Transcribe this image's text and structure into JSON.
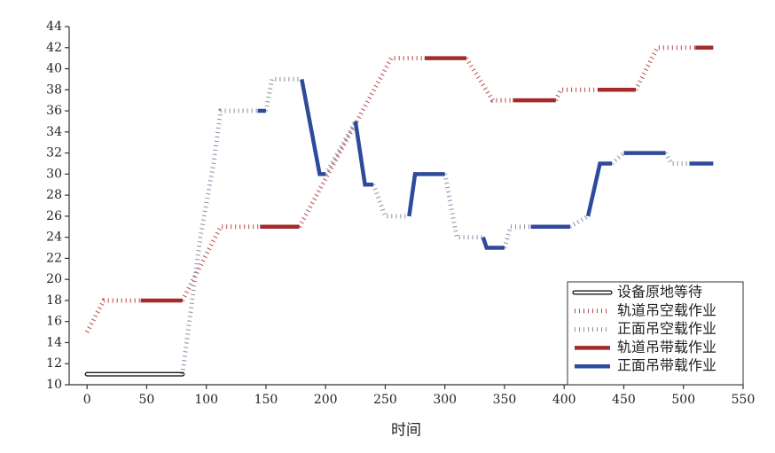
{
  "chart_data": {
    "type": "line",
    "x_label": "时间",
    "xlim": [
      -15,
      550
    ],
    "xticks": [
      0,
      50,
      100,
      150,
      200,
      250,
      300,
      350,
      400,
      450,
      500,
      550
    ],
    "ylim": [
      10,
      44
    ],
    "yticks": [
      10,
      12,
      14,
      16,
      18,
      20,
      22,
      24,
      26,
      28,
      30,
      32,
      34,
      36,
      38,
      40,
      42,
      44
    ],
    "legend": "lower right",
    "series": [
      {
        "name": "设备原地等待",
        "color": "#000000",
        "style": "hollow",
        "x": [
          0,
          80
        ],
        "values": [
          11,
          11
        ]
      },
      {
        "name": "轨道吊空载作业",
        "color": "#b84a4a",
        "style": "dotted",
        "x": [
          0,
          14,
          45,
          null,
          80,
          112,
          145,
          null,
          178,
          255,
          283,
          null,
          318,
          340,
          357,
          null,
          393,
          397,
          428,
          null,
          460,
          478,
          510
        ],
        "values": [
          15,
          18,
          18,
          null,
          18,
          25,
          25,
          null,
          25,
          41,
          41,
          null,
          41,
          37,
          37,
          null,
          37,
          38,
          38,
          null,
          38,
          42,
          42
        ]
      },
      {
        "name": "正面吊空载作业",
        "color": "#8a8fa8",
        "style": "dotted",
        "x": [
          80,
          95,
          106,
          112,
          143,
          null,
          150,
          155,
          180,
          null,
          200,
          225,
          null,
          240,
          250,
          270,
          null,
          300,
          310,
          332,
          null,
          350,
          355,
          372,
          null,
          405,
          420,
          null,
          440,
          450,
          null,
          485,
          490,
          505
        ],
        "values": [
          11,
          24,
          31,
          36,
          36,
          null,
          36,
          39,
          39,
          null,
          30,
          35,
          null,
          29,
          26,
          26,
          null,
          30,
          24,
          24,
          null,
          23,
          25,
          25,
          null,
          25,
          26,
          null,
          31,
          32,
          null,
          32,
          31,
          31
        ]
      },
      {
        "name": "轨道吊带载作业",
        "color": "#a52a2a",
        "style": "solid",
        "x": [
          45,
          80,
          null,
          145,
          178,
          null,
          283,
          318,
          null,
          357,
          393,
          null,
          428,
          460,
          null,
          510,
          525
        ],
        "values": [
          18,
          18,
          null,
          25,
          25,
          null,
          41,
          41,
          null,
          37,
          37,
          null,
          38,
          38,
          null,
          42,
          42
        ]
      },
      {
        "name": "正面吊带载作业",
        "color": "#2e4a9a",
        "style": "solid",
        "x": [
          143,
          150,
          null,
          180,
          195,
          200,
          null,
          225,
          233,
          240,
          null,
          270,
          275,
          300,
          null,
          332,
          335,
          350,
          null,
          372,
          405,
          null,
          420,
          430,
          440,
          null,
          450,
          485,
          null,
          505,
          525
        ],
        "values": [
          36,
          36,
          null,
          39,
          30,
          30,
          null,
          35,
          29,
          29,
          null,
          26,
          30,
          30,
          null,
          24,
          23,
          23,
          null,
          25,
          25,
          null,
          26,
          31,
          31,
          null,
          32,
          32,
          null,
          31,
          31
        ]
      }
    ]
  }
}
